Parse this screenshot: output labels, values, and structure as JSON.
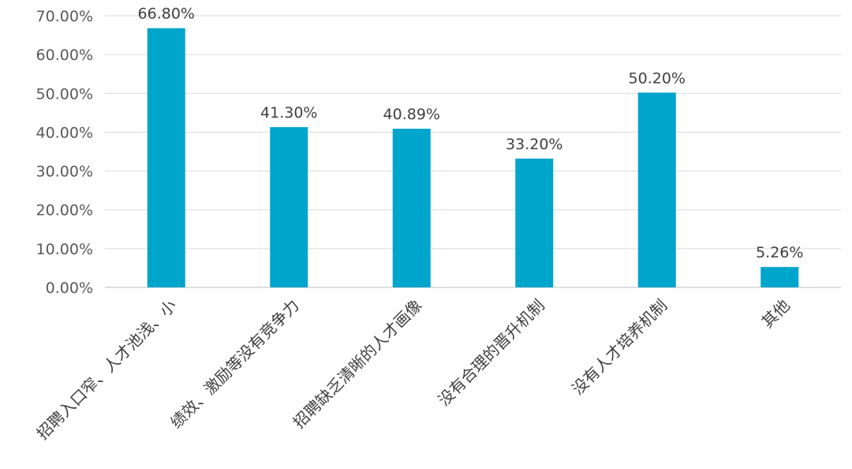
{
  "chart_data": {
    "type": "bar",
    "categories": [
      "招聘入口窄、人才池浅、小",
      "绩效、激励等没有竞争力",
      "招聘缺乏清晰的人才画像",
      "没有合理的晋升机制",
      "没有人才培养机制",
      "其他"
    ],
    "values": [
      66.8,
      41.3,
      40.89,
      33.2,
      50.2,
      5.26
    ],
    "data_labels": [
      "66.80%",
      "41.30%",
      "40.89%",
      "33.20%",
      "50.20%",
      "5.26%"
    ],
    "y_ticks": [
      0,
      10,
      20,
      30,
      40,
      50,
      60,
      70
    ],
    "y_tick_labels": [
      "0.00%",
      "10.00%",
      "20.00%",
      "30.00%",
      "40.00%",
      "50.00%",
      "60.00%",
      "70.00%"
    ],
    "ylim": [
      0,
      70
    ],
    "grid": true,
    "legend": "none",
    "bar_color": "#00a5cb"
  }
}
